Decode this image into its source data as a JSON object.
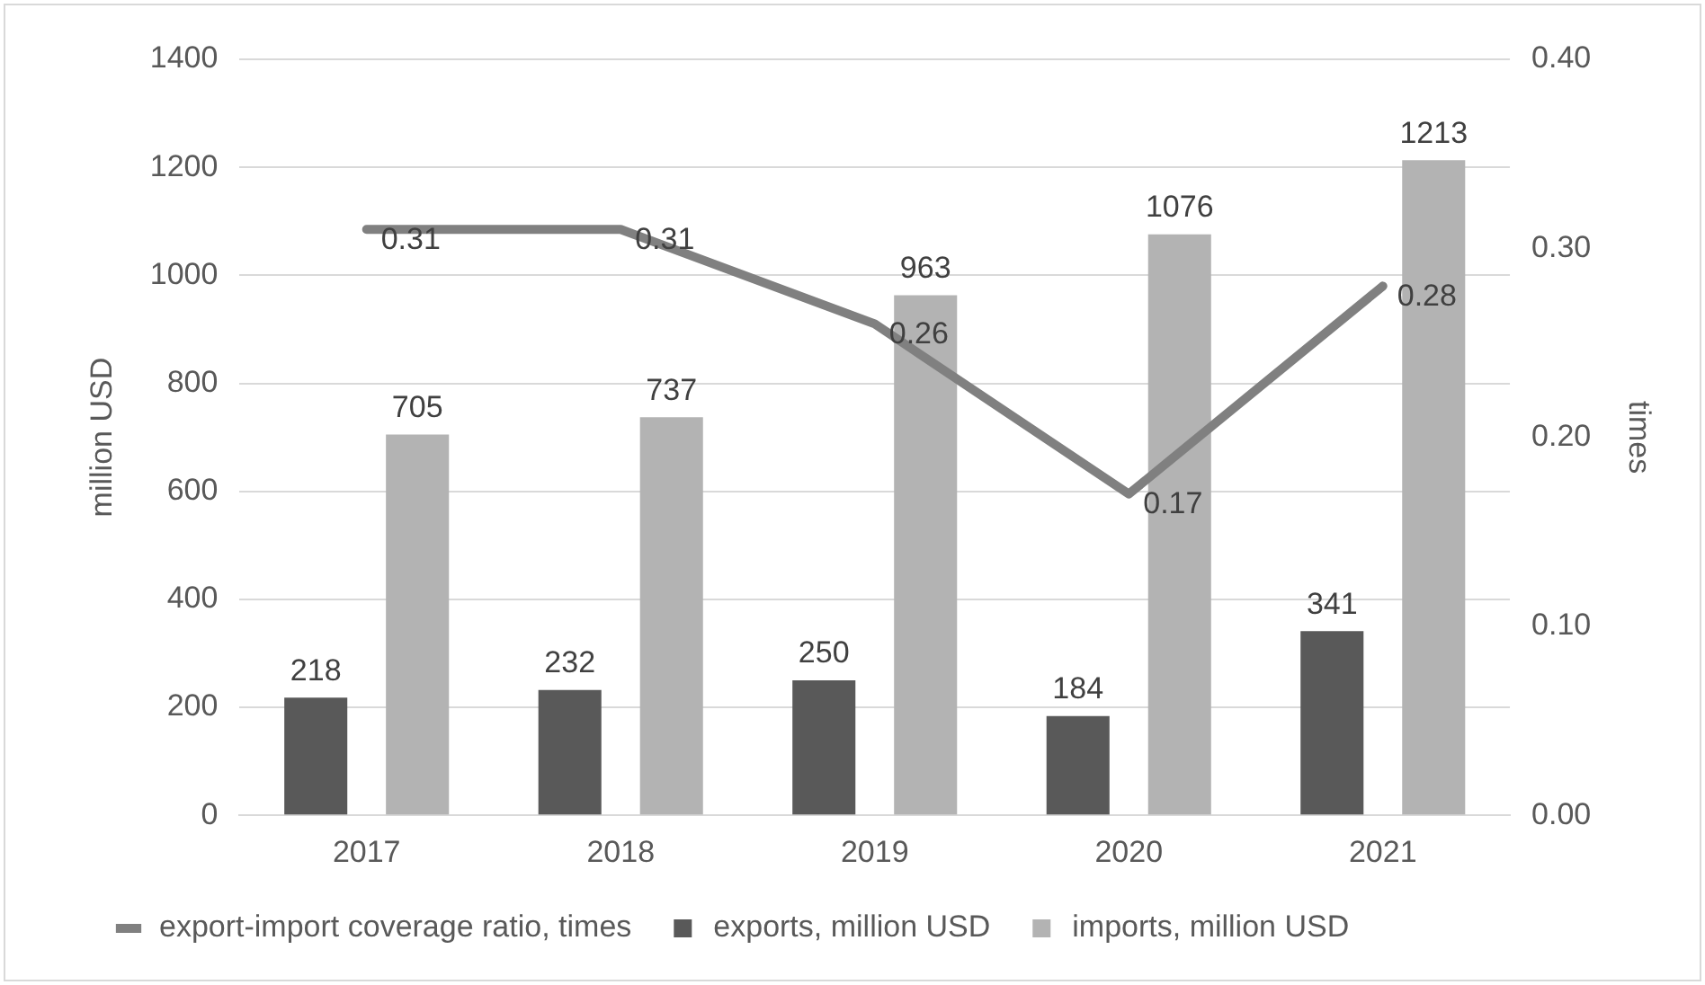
{
  "chart_data": {
    "type": "bar",
    "categories": [
      "2017",
      "2018",
      "2019",
      "2020",
      "2021"
    ],
    "series": [
      {
        "name": "exports, million USD",
        "color": "#595959",
        "values": [
          218,
          232,
          250,
          184,
          341
        ]
      },
      {
        "name": "imports, million USD",
        "color": "#b3b3b3",
        "values": [
          705,
          737,
          963,
          1076,
          1213
        ]
      },
      {
        "name": "export-import coverage ratio, times",
        "type": "line",
        "axis": "y2",
        "color": "#808080",
        "values": [
          0.31,
          0.31,
          0.26,
          0.17,
          0.28
        ]
      }
    ],
    "ylabel": "million USD",
    "y2label": "times",
    "ylim": [
      0,
      1400
    ],
    "yticks": [
      0,
      200,
      400,
      600,
      800,
      1000,
      1200,
      1400
    ],
    "y2lim": [
      0,
      0.4
    ],
    "y2ticks": [
      {
        "value": 0,
        "label": "0.00"
      },
      {
        "value": 0.1,
        "label": "0.10"
      },
      {
        "value": 0.2,
        "label": "0.20"
      },
      {
        "value": 0.3,
        "label": "0.30"
      },
      {
        "value": 0.4,
        "label": "0.40"
      }
    ],
    "grid": "y",
    "legend": "bottom",
    "data_labels": true
  }
}
